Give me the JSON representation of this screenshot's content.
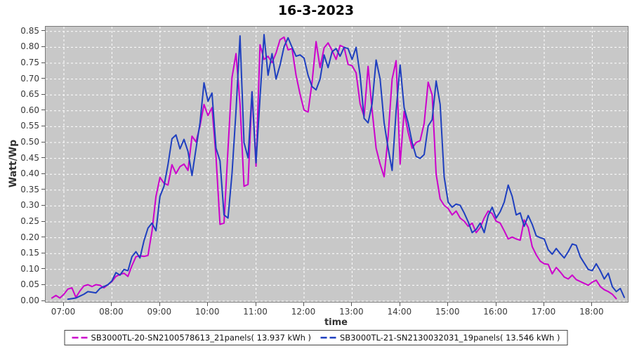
{
  "title": "16-3-2023",
  "axes": {
    "x_label": "time",
    "y_label": "Watt/Wp",
    "x_ticks": [
      "07:00",
      "08:00",
      "09:00",
      "10:00",
      "11:00",
      "12:00",
      "13:00",
      "14:00",
      "15:00",
      "16:00",
      "17:00",
      "18:00"
    ],
    "y_ticks": [
      "0.00",
      "0.05",
      "0.10",
      "0.15",
      "0.20",
      "0.25",
      "0.30",
      "0.35",
      "0.40",
      "0.45",
      "0.50",
      "0.55",
      "0.60",
      "0.65",
      "0.70",
      "0.75",
      "0.80",
      "0.85"
    ]
  },
  "colors": {
    "background": "#ffffff",
    "plot_background": "#c8c8c8",
    "gridline": "#ffffff",
    "plot_border": "#7a7a7a",
    "tick_text": "#3a3a3a",
    "series1": "#cc00cc",
    "series2": "#1e3fbf"
  },
  "chart_data": {
    "type": "line",
    "title": "16-3-2023",
    "xlabel": "time",
    "ylabel": "Watt/Wp",
    "x_tick_labels": [
      "07:00",
      "08:00",
      "09:00",
      "10:00",
      "11:00",
      "12:00",
      "13:00",
      "14:00",
      "15:00",
      "16:00",
      "17:00",
      "18:00"
    ],
    "ylim": [
      0.0,
      0.866
    ],
    "y_tick_step": 0.05,
    "grid": true,
    "grid_style": "white-dashed",
    "legend_position": "bottom",
    "series": [
      {
        "name": "SB3000TL-20-SN2100578613_21panels( 13.937 kWh )",
        "energy_kwh": 13.937,
        "color": "#cc00cc",
        "points": [
          [
            "06:45",
            0.01
          ],
          [
            "06:50",
            0.018
          ],
          [
            "06:55",
            0.01
          ],
          [
            "07:00",
            0.022
          ],
          [
            "07:05",
            0.038
          ],
          [
            "07:10",
            0.042
          ],
          [
            "07:15",
            0.012
          ],
          [
            "07:20",
            0.032
          ],
          [
            "07:25",
            0.048
          ],
          [
            "07:30",
            0.052
          ],
          [
            "07:35",
            0.046
          ],
          [
            "07:40",
            0.052
          ],
          [
            "07:45",
            0.05
          ],
          [
            "07:50",
            0.042
          ],
          [
            "07:55",
            0.052
          ],
          [
            "08:00",
            0.062
          ],
          [
            "08:05",
            0.078
          ],
          [
            "08:10",
            0.084
          ],
          [
            "08:15",
            0.088
          ],
          [
            "08:20",
            0.078
          ],
          [
            "08:25",
            0.112
          ],
          [
            "08:30",
            0.14
          ],
          [
            "08:35",
            0.143
          ],
          [
            "08:40",
            0.141
          ],
          [
            "08:45",
            0.144
          ],
          [
            "08:50",
            0.22
          ],
          [
            "08:55",
            0.33
          ],
          [
            "09:00",
            0.39
          ],
          [
            "09:05",
            0.372
          ],
          [
            "09:10",
            0.366
          ],
          [
            "09:15",
            0.43
          ],
          [
            "09:20",
            0.402
          ],
          [
            "09:25",
            0.424
          ],
          [
            "09:30",
            0.432
          ],
          [
            "09:35",
            0.412
          ],
          [
            "09:40",
            0.52
          ],
          [
            "09:45",
            0.502
          ],
          [
            "09:50",
            0.552
          ],
          [
            "09:55",
            0.62
          ],
          [
            "10:00",
            0.585
          ],
          [
            "10:05",
            0.61
          ],
          [
            "10:10",
            0.455
          ],
          [
            "10:15",
            0.242
          ],
          [
            "10:20",
            0.246
          ],
          [
            "10:25",
            0.48
          ],
          [
            "10:30",
            0.705
          ],
          [
            "10:35",
            0.78
          ],
          [
            "10:40",
            0.622
          ],
          [
            "10:45",
            0.362
          ],
          [
            "10:50",
            0.368
          ],
          [
            "10:55",
            0.66
          ],
          [
            "11:00",
            0.425
          ],
          [
            "11:05",
            0.808
          ],
          [
            "11:10",
            0.762
          ],
          [
            "11:15",
            0.772
          ],
          [
            "11:20",
            0.752
          ],
          [
            "11:25",
            0.782
          ],
          [
            "11:30",
            0.824
          ],
          [
            "11:35",
            0.832
          ],
          [
            "11:40",
            0.792
          ],
          [
            "11:45",
            0.796
          ],
          [
            "11:50",
            0.712
          ],
          [
            "11:55",
            0.652
          ],
          [
            "12:00",
            0.602
          ],
          [
            "12:05",
            0.596
          ],
          [
            "12:10",
            0.69
          ],
          [
            "12:15",
            0.818
          ],
          [
            "12:20",
            0.736
          ],
          [
            "12:25",
            0.798
          ],
          [
            "12:30",
            0.814
          ],
          [
            "12:35",
            0.79
          ],
          [
            "12:40",
            0.762
          ],
          [
            "12:45",
            0.806
          ],
          [
            "12:50",
            0.8
          ],
          [
            "12:55",
            0.746
          ],
          [
            "13:00",
            0.742
          ],
          [
            "13:05",
            0.72
          ],
          [
            "13:10",
            0.622
          ],
          [
            "13:15",
            0.582
          ],
          [
            "13:20",
            0.74
          ],
          [
            "13:25",
            0.602
          ],
          [
            "13:30",
            0.482
          ],
          [
            "13:35",
            0.432
          ],
          [
            "13:40",
            0.392
          ],
          [
            "13:45",
            0.52
          ],
          [
            "13:50",
            0.7
          ],
          [
            "13:55",
            0.758
          ],
          [
            "14:00",
            0.432
          ],
          [
            "14:05",
            0.598
          ],
          [
            "14:10",
            0.532
          ],
          [
            "14:15",
            0.482
          ],
          [
            "14:20",
            0.5
          ],
          [
            "14:25",
            0.506
          ],
          [
            "14:30",
            0.56
          ],
          [
            "14:35",
            0.69
          ],
          [
            "14:40",
            0.65
          ],
          [
            "14:45",
            0.4
          ],
          [
            "14:50",
            0.322
          ],
          [
            "14:55",
            0.302
          ],
          [
            "15:00",
            0.292
          ],
          [
            "15:05",
            0.272
          ],
          [
            "15:10",
            0.284
          ],
          [
            "15:15",
            0.262
          ],
          [
            "15:20",
            0.252
          ],
          [
            "15:25",
            0.236
          ],
          [
            "15:30",
            0.246
          ],
          [
            "15:35",
            0.216
          ],
          [
            "15:40",
            0.232
          ],
          [
            "15:45",
            0.262
          ],
          [
            "15:50",
            0.284
          ],
          [
            "15:55",
            0.276
          ],
          [
            "16:00",
            0.252
          ],
          [
            "16:05",
            0.246
          ],
          [
            "16:10",
            0.222
          ],
          [
            "16:15",
            0.196
          ],
          [
            "16:20",
            0.202
          ],
          [
            "16:25",
            0.196
          ],
          [
            "16:30",
            0.192
          ],
          [
            "16:35",
            0.256
          ],
          [
            "16:40",
            0.232
          ],
          [
            "16:45",
            0.172
          ],
          [
            "16:50",
            0.146
          ],
          [
            "16:55",
            0.126
          ],
          [
            "17:00",
            0.118
          ],
          [
            "17:05",
            0.116
          ],
          [
            "17:10",
            0.086
          ],
          [
            "17:15",
            0.106
          ],
          [
            "17:20",
            0.092
          ],
          [
            "17:25",
            0.076
          ],
          [
            "17:30",
            0.07
          ],
          [
            "17:35",
            0.082
          ],
          [
            "17:40",
            0.068
          ],
          [
            "17:45",
            0.062
          ],
          [
            "17:50",
            0.056
          ],
          [
            "17:55",
            0.05
          ],
          [
            "18:00",
            0.06
          ],
          [
            "18:05",
            0.066
          ],
          [
            "18:10",
            0.046
          ],
          [
            "18:15",
            0.036
          ],
          [
            "18:20",
            0.03
          ],
          [
            "18:25",
            0.022
          ],
          [
            "18:30",
            0.008
          ]
        ]
      },
      {
        "name": "SB3000TL-21-SN2130032031_19panels( 13.546 kWh )",
        "energy_kwh": 13.546,
        "color": "#1e3fbf",
        "points": [
          [
            "07:05",
            0.006
          ],
          [
            "07:10",
            0.008
          ],
          [
            "07:15",
            0.01
          ],
          [
            "07:20",
            0.016
          ],
          [
            "07:25",
            0.022
          ],
          [
            "07:30",
            0.03
          ],
          [
            "07:35",
            0.028
          ],
          [
            "07:40",
            0.026
          ],
          [
            "07:45",
            0.04
          ],
          [
            "07:50",
            0.046
          ],
          [
            "07:55",
            0.052
          ],
          [
            "08:00",
            0.064
          ],
          [
            "08:05",
            0.09
          ],
          [
            "08:10",
            0.082
          ],
          [
            "08:15",
            0.1
          ],
          [
            "08:20",
            0.096
          ],
          [
            "08:25",
            0.14
          ],
          [
            "08:30",
            0.156
          ],
          [
            "08:35",
            0.136
          ],
          [
            "08:40",
            0.19
          ],
          [
            "08:45",
            0.23
          ],
          [
            "08:50",
            0.246
          ],
          [
            "08:55",
            0.222
          ],
          [
            "09:00",
            0.33
          ],
          [
            "09:05",
            0.362
          ],
          [
            "09:10",
            0.43
          ],
          [
            "09:15",
            0.512
          ],
          [
            "09:20",
            0.524
          ],
          [
            "09:25",
            0.48
          ],
          [
            "09:30",
            0.51
          ],
          [
            "09:35",
            0.472
          ],
          [
            "09:40",
            0.396
          ],
          [
            "09:45",
            0.48
          ],
          [
            "09:50",
            0.562
          ],
          [
            "09:55",
            0.688
          ],
          [
            "10:00",
            0.63
          ],
          [
            "10:05",
            0.656
          ],
          [
            "10:10",
            0.482
          ],
          [
            "10:15",
            0.442
          ],
          [
            "10:20",
            0.272
          ],
          [
            "10:25",
            0.262
          ],
          [
            "10:30",
            0.402
          ],
          [
            "10:35",
            0.6
          ],
          [
            "10:40",
            0.836
          ],
          [
            "10:45",
            0.5
          ],
          [
            "10:50",
            0.452
          ],
          [
            "10:55",
            0.66
          ],
          [
            "11:00",
            0.436
          ],
          [
            "11:05",
            0.642
          ],
          [
            "11:10",
            0.84
          ],
          [
            "11:15",
            0.712
          ],
          [
            "11:20",
            0.78
          ],
          [
            "11:25",
            0.7
          ],
          [
            "11:30",
            0.744
          ],
          [
            "11:35",
            0.802
          ],
          [
            "11:40",
            0.83
          ],
          [
            "11:45",
            0.8
          ],
          [
            "11:50",
            0.772
          ],
          [
            "11:55",
            0.776
          ],
          [
            "12:00",
            0.766
          ],
          [
            "12:05",
            0.712
          ],
          [
            "12:10",
            0.676
          ],
          [
            "12:15",
            0.666
          ],
          [
            "12:20",
            0.7
          ],
          [
            "12:25",
            0.776
          ],
          [
            "12:30",
            0.736
          ],
          [
            "12:35",
            0.786
          ],
          [
            "12:40",
            0.796
          ],
          [
            "12:45",
            0.772
          ],
          [
            "12:50",
            0.8
          ],
          [
            "12:55",
            0.796
          ],
          [
            "13:00",
            0.762
          ],
          [
            "13:05",
            0.8
          ],
          [
            "13:10",
            0.712
          ],
          [
            "13:15",
            0.576
          ],
          [
            "13:20",
            0.562
          ],
          [
            "13:25",
            0.622
          ],
          [
            "13:30",
            0.76
          ],
          [
            "13:35",
            0.7
          ],
          [
            "13:40",
            0.562
          ],
          [
            "13:45",
            0.482
          ],
          [
            "13:50",
            0.412
          ],
          [
            "13:55",
            0.6
          ],
          [
            "14:00",
            0.744
          ],
          [
            "14:05",
            0.61
          ],
          [
            "14:10",
            0.562
          ],
          [
            "14:15",
            0.5
          ],
          [
            "14:20",
            0.456
          ],
          [
            "14:25",
            0.45
          ],
          [
            "14:30",
            0.462
          ],
          [
            "14:35",
            0.552
          ],
          [
            "14:40",
            0.572
          ],
          [
            "14:45",
            0.694
          ],
          [
            "14:50",
            0.62
          ],
          [
            "14:55",
            0.392
          ],
          [
            "15:00",
            0.312
          ],
          [
            "15:05",
            0.296
          ],
          [
            "15:10",
            0.306
          ],
          [
            "15:15",
            0.302
          ],
          [
            "15:20",
            0.278
          ],
          [
            "15:25",
            0.25
          ],
          [
            "15:30",
            0.216
          ],
          [
            "15:35",
            0.226
          ],
          [
            "15:40",
            0.246
          ],
          [
            "15:45",
            0.216
          ],
          [
            "15:50",
            0.27
          ],
          [
            "15:55",
            0.296
          ],
          [
            "16:00",
            0.262
          ],
          [
            "16:05",
            0.282
          ],
          [
            "16:10",
            0.312
          ],
          [
            "16:15",
            0.366
          ],
          [
            "16:20",
            0.33
          ],
          [
            "16:25",
            0.272
          ],
          [
            "16:30",
            0.278
          ],
          [
            "16:35",
            0.236
          ],
          [
            "16:40",
            0.27
          ],
          [
            "16:45",
            0.242
          ],
          [
            "16:50",
            0.206
          ],
          [
            "16:55",
            0.2
          ],
          [
            "17:00",
            0.196
          ],
          [
            "17:05",
            0.162
          ],
          [
            "17:10",
            0.148
          ],
          [
            "17:15",
            0.166
          ],
          [
            "17:20",
            0.15
          ],
          [
            "17:25",
            0.136
          ],
          [
            "17:30",
            0.156
          ],
          [
            "17:35",
            0.18
          ],
          [
            "17:40",
            0.176
          ],
          [
            "17:45",
            0.14
          ],
          [
            "17:50",
            0.12
          ],
          [
            "17:55",
            0.1
          ],
          [
            "18:00",
            0.096
          ],
          [
            "18:05",
            0.118
          ],
          [
            "18:10",
            0.096
          ],
          [
            "18:15",
            0.07
          ],
          [
            "18:20",
            0.088
          ],
          [
            "18:25",
            0.046
          ],
          [
            "18:30",
            0.03
          ],
          [
            "18:35",
            0.04
          ],
          [
            "18:40",
            0.012
          ]
        ]
      }
    ]
  }
}
